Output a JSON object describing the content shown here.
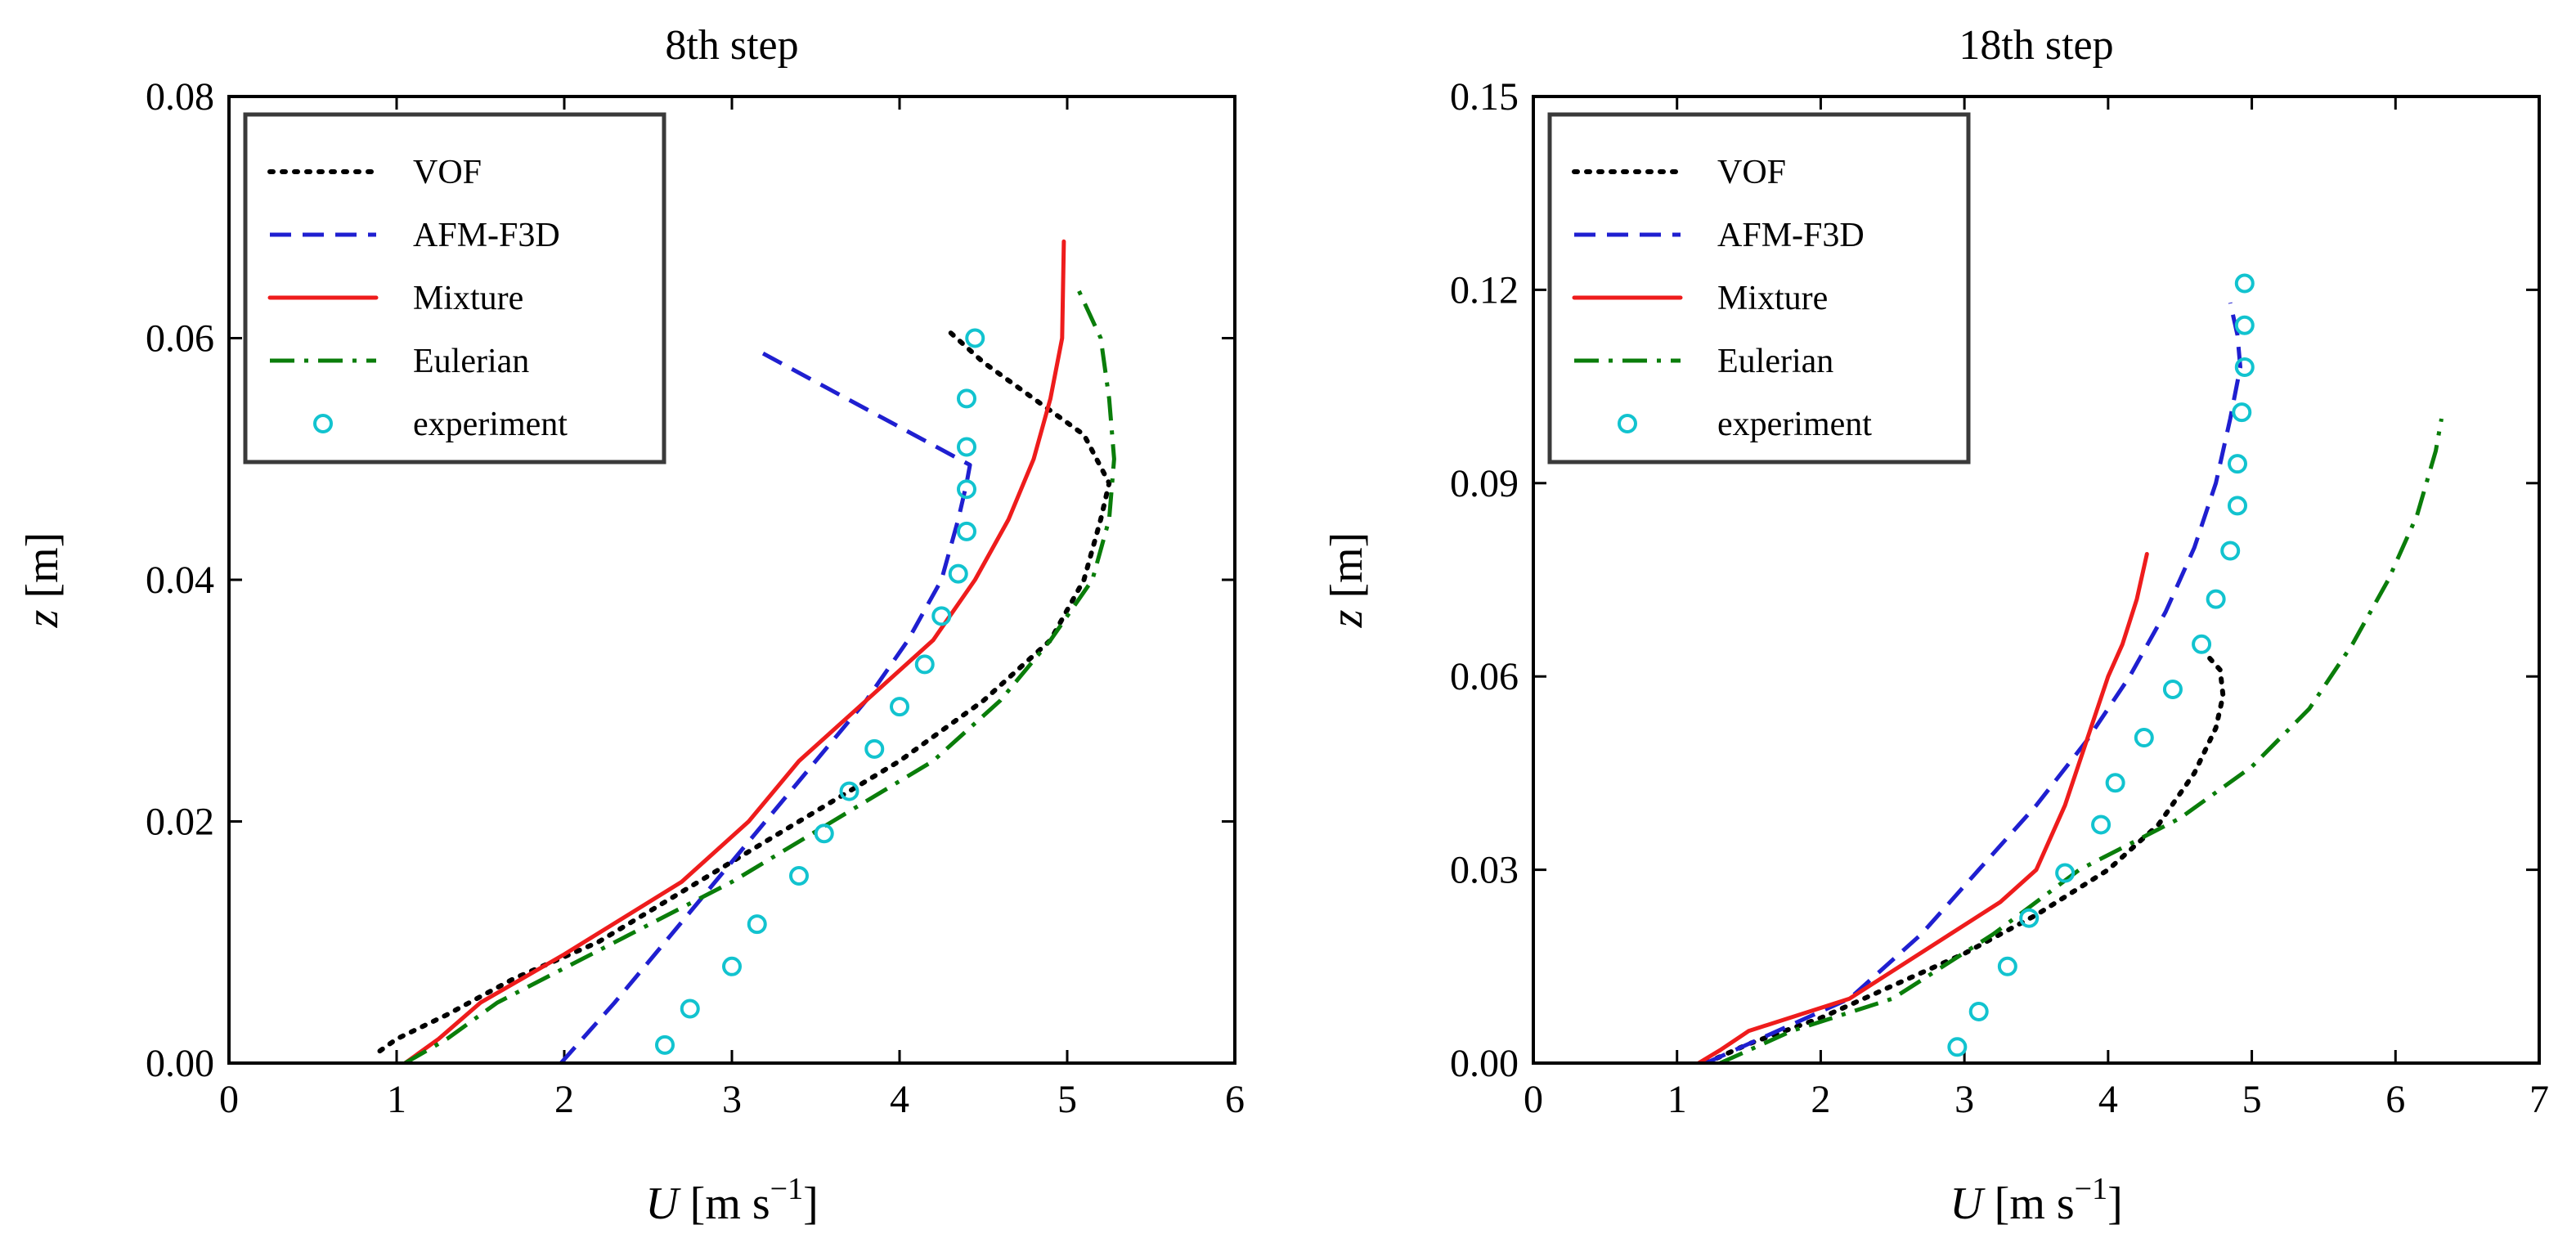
{
  "chart_data": [
    {
      "type": "line",
      "title": "8th step",
      "xlabel_var": "U",
      "xlabel_unit": "[m s",
      "xlabel_exp": "−1",
      "xlabel_close": "]",
      "ylabel_var": "z",
      "ylabel_unit": " [m]",
      "xlim": [
        0,
        6
      ],
      "ylim": [
        0,
        0.08
      ],
      "xticks": [
        0,
        1,
        2,
        3,
        4,
        5,
        6
      ],
      "xtick_labels": [
        "0",
        "1",
        "2",
        "3",
        "4",
        "5",
        "6"
      ],
      "yticks": [
        0,
        0.02,
        0.04,
        0.06,
        0.08
      ],
      "ytick_labels": [
        "0.00",
        "0.02",
        "0.04",
        "0.06",
        "0.08"
      ],
      "legend_position": "top-left",
      "series": [
        {
          "name": "VOF",
          "style": "dotted",
          "color": "#000000",
          "points": [
            [
              0.9,
              0.001
            ],
            [
              1.0,
              0.002
            ],
            [
              1.3,
              0.004
            ],
            [
              1.7,
              0.007
            ],
            [
              2.2,
              0.01
            ],
            [
              2.8,
              0.015
            ],
            [
              3.4,
              0.02
            ],
            [
              4.0,
              0.025
            ],
            [
              4.5,
              0.03
            ],
            [
              4.9,
              0.035
            ],
            [
              5.1,
              0.04
            ],
            [
              5.2,
              0.045
            ],
            [
              5.25,
              0.048
            ],
            [
              5.1,
              0.052
            ],
            [
              4.8,
              0.055
            ],
            [
              4.5,
              0.058
            ],
            [
              4.3,
              0.0605
            ]
          ]
        },
        {
          "name": "AFM-F3D",
          "style": "dashed",
          "color": "#1f1fd0",
          "points": [
            [
              1.98,
              0.0
            ],
            [
              2.3,
              0.005
            ],
            [
              2.6,
              0.01
            ],
            [
              2.9,
              0.015
            ],
            [
              3.2,
              0.02
            ],
            [
              3.5,
              0.025
            ],
            [
              3.8,
              0.03
            ],
            [
              4.05,
              0.035
            ],
            [
              4.25,
              0.04
            ],
            [
              4.35,
              0.045
            ],
            [
              4.4,
              0.048
            ],
            [
              4.42,
              0.0495
            ],
            [
              3.15,
              0.059
            ]
          ]
        },
        {
          "name": "Mixture",
          "style": "solid",
          "color": "#ee1c1c",
          "points": [
            [
              1.05,
              0.0
            ],
            [
              1.25,
              0.002
            ],
            [
              1.5,
              0.005
            ],
            [
              2.0,
              0.009
            ],
            [
              2.7,
              0.015
            ],
            [
              3.1,
              0.02
            ],
            [
              3.4,
              0.025
            ],
            [
              3.8,
              0.03
            ],
            [
              4.2,
              0.035
            ],
            [
              4.45,
              0.04
            ],
            [
              4.65,
              0.045
            ],
            [
              4.8,
              0.05
            ],
            [
              4.9,
              0.055
            ],
            [
              4.97,
              0.06
            ],
            [
              4.98,
              0.068
            ]
          ]
        },
        {
          "name": "Eulerian",
          "style": "dashdot",
          "color": "#0a7d0a",
          "points": [
            [
              1.05,
              0.0
            ],
            [
              1.3,
              0.002
            ],
            [
              1.6,
              0.005
            ],
            [
              2.3,
              0.01
            ],
            [
              3.0,
              0.015
            ],
            [
              3.6,
              0.02
            ],
            [
              4.2,
              0.025
            ],
            [
              4.6,
              0.03
            ],
            [
              4.9,
              0.035
            ],
            [
              5.15,
              0.04
            ],
            [
              5.25,
              0.045
            ],
            [
              5.28,
              0.05
            ],
            [
              5.25,
              0.055
            ],
            [
              5.2,
              0.06
            ],
            [
              5.05,
              0.0645
            ]
          ]
        },
        {
          "name": "experiment",
          "style": "circle",
          "color": "#12c3cf",
          "points": [
            [
              2.6,
              0.0015
            ],
            [
              2.75,
              0.0045
            ],
            [
              3.0,
              0.008
            ],
            [
              3.15,
              0.0115
            ],
            [
              3.4,
              0.0155
            ],
            [
              3.55,
              0.019
            ],
            [
              3.7,
              0.0225
            ],
            [
              3.85,
              0.026
            ],
            [
              4.0,
              0.0295
            ],
            [
              4.15,
              0.033
            ],
            [
              4.25,
              0.037
            ],
            [
              4.35,
              0.0405
            ],
            [
              4.4,
              0.044
            ],
            [
              4.4,
              0.0475
            ],
            [
              4.4,
              0.051
            ],
            [
              4.4,
              0.055
            ],
            [
              4.45,
              0.06
            ]
          ]
        }
      ]
    },
    {
      "type": "line",
      "title": "18th step",
      "xlabel_var": "U",
      "xlabel_unit": "[m s",
      "xlabel_exp": "−1",
      "xlabel_close": "]",
      "ylabel_var": "z",
      "ylabel_unit": " [m]",
      "xlim": [
        0,
        7
      ],
      "ylim": [
        0,
        0.15
      ],
      "xticks": [
        0,
        1,
        2,
        3,
        4,
        5,
        6,
        7
      ],
      "xtick_labels": [
        "0",
        "1",
        "2",
        "3",
        "4",
        "5",
        "6",
        "7"
      ],
      "yticks": [
        0,
        0.03,
        0.06,
        0.09,
        0.12,
        0.15
      ],
      "ytick_labels": [
        "0.00",
        "0.03",
        "0.06",
        "0.09",
        "0.12",
        "0.15"
      ],
      "legend_position": "top-left",
      "series": [
        {
          "name": "VOF",
          "style": "dotted",
          "color": "#000000",
          "points": [
            [
              1.2,
              0.0
            ],
            [
              1.5,
              0.003
            ],
            [
              2.0,
              0.007
            ],
            [
              2.5,
              0.012
            ],
            [
              3.0,
              0.017
            ],
            [
              3.5,
              0.023
            ],
            [
              4.0,
              0.03
            ],
            [
              4.35,
              0.037
            ],
            [
              4.6,
              0.045
            ],
            [
              4.75,
              0.052
            ],
            [
              4.8,
              0.057
            ],
            [
              4.78,
              0.061
            ],
            [
              4.7,
              0.063
            ]
          ]
        },
        {
          "name": "AFM-F3D",
          "style": "dashed",
          "color": "#1f1fd0",
          "points": [
            [
              1.2,
              0.0
            ],
            [
              1.6,
              0.004
            ],
            [
              2.2,
              0.01
            ],
            [
              2.7,
              0.02
            ],
            [
              3.1,
              0.03
            ],
            [
              3.5,
              0.04
            ],
            [
              3.85,
              0.05
            ],
            [
              4.15,
              0.06
            ],
            [
              4.4,
              0.07
            ],
            [
              4.6,
              0.08
            ],
            [
              4.75,
              0.09
            ],
            [
              4.85,
              0.1
            ],
            [
              4.92,
              0.108
            ],
            [
              4.9,
              0.113
            ],
            [
              4.85,
              0.118
            ]
          ]
        },
        {
          "name": "Mixture",
          "style": "solid",
          "color": "#ee1c1c",
          "points": [
            [
              1.15,
              0.0
            ],
            [
              1.3,
              0.002
            ],
            [
              1.5,
              0.005
            ],
            [
              2.2,
              0.01
            ],
            [
              2.9,
              0.02
            ],
            [
              3.25,
              0.025
            ],
            [
              3.5,
              0.03
            ],
            [
              3.7,
              0.04
            ],
            [
              3.85,
              0.05
            ],
            [
              4.0,
              0.06
            ],
            [
              4.1,
              0.065
            ],
            [
              4.2,
              0.072
            ],
            [
              4.27,
              0.079
            ]
          ]
        },
        {
          "name": "Eulerian",
          "style": "dashdot",
          "color": "#0a7d0a",
          "points": [
            [
              1.3,
              0.0
            ],
            [
              1.8,
              0.005
            ],
            [
              2.5,
              0.01
            ],
            [
              3.2,
              0.02
            ],
            [
              3.8,
              0.03
            ],
            [
              4.5,
              0.038
            ],
            [
              5.0,
              0.046
            ],
            [
              5.4,
              0.055
            ],
            [
              5.7,
              0.065
            ],
            [
              5.95,
              0.075
            ],
            [
              6.15,
              0.085
            ],
            [
              6.28,
              0.095
            ],
            [
              6.32,
              0.1
            ]
          ]
        },
        {
          "name": "experiment",
          "style": "circle",
          "color": "#12c3cf",
          "points": [
            [
              2.95,
              0.0025
            ],
            [
              3.1,
              0.008
            ],
            [
              3.3,
              0.015
            ],
            [
              3.45,
              0.0225
            ],
            [
              3.7,
              0.0295
            ],
            [
              3.95,
              0.037
            ],
            [
              4.05,
              0.0435
            ],
            [
              4.25,
              0.0505
            ],
            [
              4.45,
              0.058
            ],
            [
              4.65,
              0.065
            ],
            [
              4.75,
              0.072
            ],
            [
              4.85,
              0.0795
            ],
            [
              4.9,
              0.0865
            ],
            [
              4.9,
              0.093
            ],
            [
              4.93,
              0.101
            ],
            [
              4.95,
              0.108
            ],
            [
              4.95,
              0.1145
            ],
            [
              4.95,
              0.121
            ]
          ]
        }
      ]
    }
  ]
}
